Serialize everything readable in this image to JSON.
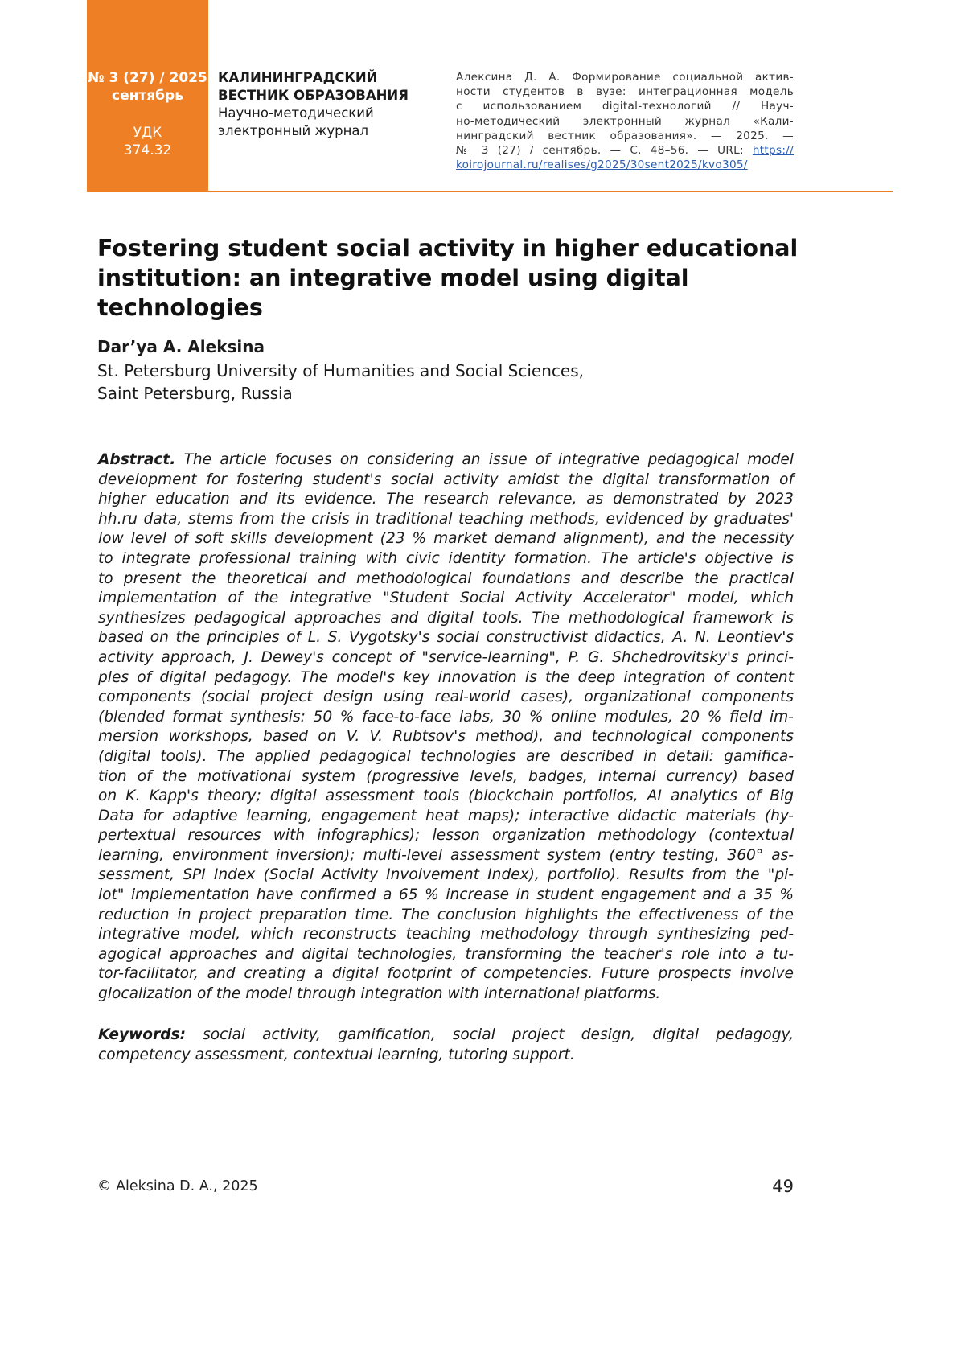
{
  "header": {
    "issue": "№ 3 (27) / 2025",
    "month": "сентябрь",
    "udk_label": "УДК",
    "udk_value": "374.32",
    "journal_name_line1": "КАЛИНИНГРАДСКИЙ",
    "journal_name_line2": "ВЕСТНИК ОБРАЗОВАНИЯ",
    "journal_sub_line1": "Научно-методический",
    "journal_sub_line2": "электронный журнал",
    "citation_lines": [
      "Алексина Д. А. Формирование социальной актив-",
      "ности студентов в вузе: интеграционная модель",
      "с использованием digital-технологий // Науч-",
      "но-методический электронный журнал «Кали-",
      "нинградский вестник образования». — 2025. —",
      "№ 3 (27) / сентябрь. — С. 48–56. — URL: "
    ],
    "citation_url_part1": "https://",
    "citation_url_part2": "koirojournal.ru/realises/g2025/30sent2025/kvo305/",
    "brand_color": "#ef7f24",
    "link_color": "#2a5db0"
  },
  "article": {
    "title_line1": "Fostering student social activity in higher educational",
    "title_line2": "institution: an integrative model using digital technologies",
    "author": "Dar’ya A. Aleksina",
    "affiliation_line1": "St. Petersburg University of Humanities and Social Sciences,",
    "affiliation_line2": "Saint Petersburg, Russia",
    "abstract_label": "Abstract.",
    "abstract_lines": [
      " The article focuses on considering an issue of integrative pedagogical model",
      "development for fostering student's social activity amidst the digital transformation of",
      "higher education and its evidence. The research relevance, as demonstrated by 2023",
      "hh.ru data, stems from the crisis in traditional teaching methods, evidenced by graduates'",
      "low level of soft skills development (23 % market demand alignment), and the necessity",
      "to integrate professional training with civic identity formation. The article's objective is",
      "to present the theoretical and methodological foundations and describe the practical",
      "implementation of the integrative \"Student Social Activity Accelerator\" model, which",
      "synthesizes pedagogical approaches and digital tools. The methodological framework is",
      "based on the principles of L. S. Vygotsky's social constructivist didactics, A. N. Leontiev's",
      "activity approach, J. Dewey's concept of \"service-learning\", P. G. Shchedrovitsky's princi-",
      "ples of digital pedagogy. The model's key innovation is the deep integration of content",
      "components (social project design using real-world cases), organizational components",
      "(blended format synthesis: 50 % face-to-face labs, 30 % online modules, 20 % field im-",
      "mersion workshops, based on V. V. Rubtsov's method), and technological components",
      "(digital tools). The applied pedagogical technologies are described in detail: gamifica-",
      "tion of the motivational system (progressive levels, badges, internal currency) based",
      "on K. Kapp's theory; digital assessment tools (blockchain portfolios, AI analytics of Big",
      "Data for adaptive learning, engagement heat maps); interactive didactic materials (hy-",
      "pertextual resources with infographics); lesson organization methodology (contextual",
      "learning, environment inversion); multi-level assessment system (entry testing, 360° as-",
      "sessment, SPI Index (Social Activity Involvement Index), portfolio). Results from the \"pi-",
      "lot\" implementation have confirmed a 65 % increase in student engagement and a 35 %",
      "reduction in project preparation time. The conclusion highlights the effectiveness of the",
      "integrative model, which reconstructs teaching methodology through synthesizing ped-",
      "agogical approaches and digital technologies, transforming the teacher's role into a tu-",
      "tor-facilitator, and creating a digital footprint of competencies. Future prospects involve",
      "glocalization of the model through integration with international platforms."
    ],
    "keywords_label": "Keywords:",
    "keywords_line1": " social activity, gamification, social project design, digital pedagogy,",
    "keywords_line2": "competency assessment, contextual learning, tutoring support."
  },
  "footer": {
    "copyright": "© Aleksina D. A., 2025",
    "page_number": "49"
  }
}
